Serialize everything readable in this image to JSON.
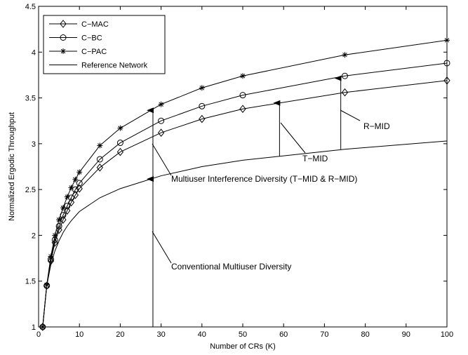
{
  "chart_data": {
    "type": "line",
    "xlabel": "Number of CRs (K)",
    "ylabel": "Normalized Ergodic Throughput",
    "xlim": [
      0,
      100
    ],
    "ylim": [
      1,
      4.5
    ],
    "xticks": [
      0,
      10,
      20,
      30,
      40,
      50,
      60,
      70,
      80,
      90,
      100
    ],
    "yticks": [
      1,
      1.5,
      2,
      2.5,
      3,
      3.5,
      4,
      4.5
    ],
    "xtick_labels": [
      "0",
      "10",
      "20",
      "30",
      "40",
      "50",
      "60",
      "70",
      "80",
      "90",
      "100"
    ],
    "ytick_labels": [
      "1",
      "1.5",
      "2",
      "2.5",
      "3",
      "3.5",
      "4",
      "4.5"
    ],
    "grid": false,
    "legend_position": "top-left",
    "series": [
      {
        "name": "C−MAC",
        "marker": "diamond",
        "x": [
          1,
          2,
          3,
          4,
          5,
          6,
          7,
          8,
          9,
          10,
          15,
          20,
          30,
          40,
          50,
          75,
          100
        ],
        "y": [
          1.0,
          1.45,
          1.72,
          1.92,
          2.06,
          2.17,
          2.27,
          2.36,
          2.44,
          2.51,
          2.74,
          2.91,
          3.12,
          3.27,
          3.38,
          3.56,
          3.69
        ]
      },
      {
        "name": "C−BC",
        "marker": "circle",
        "x": [
          1,
          2,
          3,
          4,
          5,
          6,
          7,
          8,
          9,
          10,
          15,
          20,
          30,
          40,
          50,
          75,
          100
        ],
        "y": [
          1.0,
          1.45,
          1.74,
          1.95,
          2.1,
          2.22,
          2.32,
          2.41,
          2.5,
          2.57,
          2.83,
          3.01,
          3.25,
          3.41,
          3.53,
          3.74,
          3.88
        ]
      },
      {
        "name": "C−PAC",
        "marker": "star",
        "x": [
          1,
          2,
          3,
          4,
          5,
          6,
          7,
          8,
          9,
          10,
          15,
          20,
          30,
          40,
          50,
          75,
          100
        ],
        "y": [
          1.0,
          1.46,
          1.77,
          2.0,
          2.17,
          2.3,
          2.42,
          2.52,
          2.61,
          2.69,
          2.98,
          3.17,
          3.43,
          3.61,
          3.74,
          3.97,
          4.13
        ]
      },
      {
        "name": "Reference Network",
        "marker": "none",
        "x": [
          1,
          2,
          3,
          4,
          5,
          6,
          7,
          8,
          9,
          10,
          15,
          20,
          30,
          40,
          50,
          75,
          100
        ],
        "y": [
          1.0,
          1.45,
          1.68,
          1.83,
          1.94,
          2.03,
          2.1,
          2.16,
          2.21,
          2.26,
          2.41,
          2.51,
          2.65,
          2.75,
          2.82,
          2.94,
          3.03
        ]
      }
    ],
    "annotations": [
      {
        "text": "Multiuser Interference Diversity (T−MID & R−MID)"
      },
      {
        "text": "Conventional Multiuser Diversity"
      },
      {
        "text": "T−MID"
      },
      {
        "text": "R−MID"
      }
    ]
  }
}
